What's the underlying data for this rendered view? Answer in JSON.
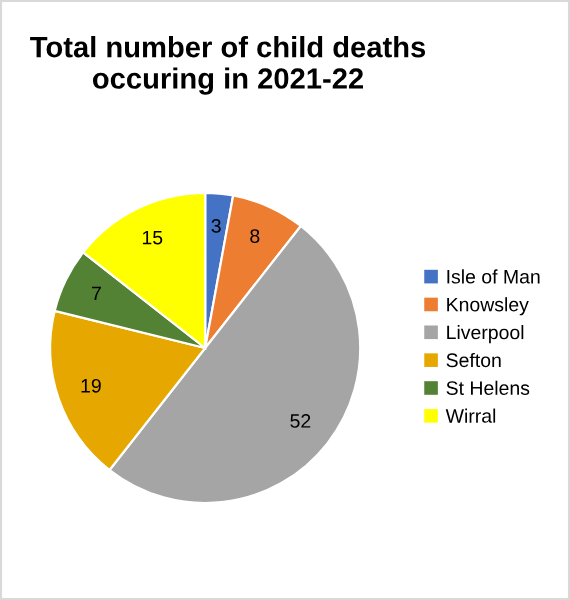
{
  "chart_data": {
    "type": "pie",
    "title": "Total number of child deaths occuring in 2021-22",
    "categories": [
      "Isle of Man",
      "Knowsley",
      "Liverpool",
      "Sefton",
      "St Helens",
      "Wirral"
    ],
    "values": [
      3,
      8,
      52,
      19,
      7,
      15
    ],
    "colors": [
      "#4472c4",
      "#ed7d31",
      "#a5a5a5",
      "#e6a800",
      "#548235",
      "#ffff00"
    ],
    "data_labels": true,
    "legend": "right"
  }
}
